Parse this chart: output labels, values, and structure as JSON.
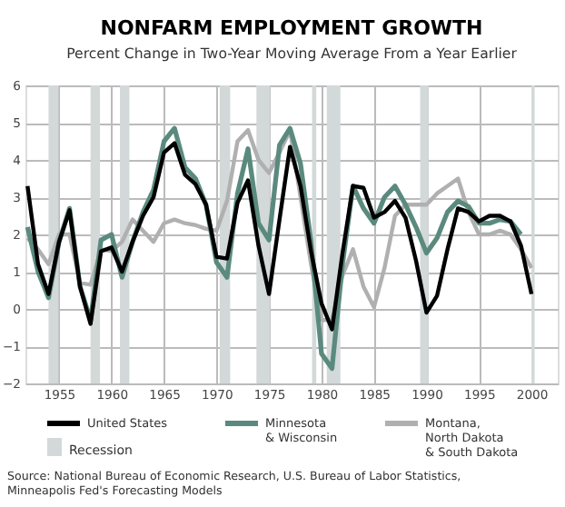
{
  "chart_data": {
    "type": "line",
    "title": "NONFARM EMPLOYMENT GROWTH",
    "subtitle": "Percent Change in Two-Year Moving Average From a Year Earlier",
    "x": [
      1952,
      1953,
      1954,
      1955,
      1956,
      1957,
      1958,
      1959,
      1960,
      1961,
      1962,
      1963,
      1964,
      1965,
      1966,
      1967,
      1968,
      1969,
      1970,
      1971,
      1972,
      1973,
      1974,
      1975,
      1976,
      1977,
      1978,
      1979,
      1980,
      1981,
      1982,
      1983,
      1984,
      1985,
      1986,
      1987,
      1988,
      1989,
      1990,
      1991,
      1992,
      1993,
      1994,
      1995,
      1996,
      1997,
      1998,
      1999,
      2000
    ],
    "series": [
      {
        "name": "United States",
        "color": "#000000",
        "values": [
          3.3,
          1.2,
          0.4,
          1.8,
          2.65,
          0.6,
          -0.4,
          1.55,
          1.65,
          1.0,
          1.8,
          2.5,
          3.0,
          4.2,
          4.45,
          3.6,
          3.35,
          2.8,
          1.4,
          1.35,
          2.85,
          3.45,
          1.7,
          0.4,
          2.4,
          4.35,
          3.3,
          1.55,
          0.15,
          -0.55,
          1.5,
          3.3,
          3.25,
          2.45,
          2.6,
          2.9,
          2.45,
          1.3,
          -0.1,
          0.35,
          1.6,
          2.7,
          2.6,
          2.35,
          2.5,
          2.5,
          2.35,
          1.7,
          0.4
        ]
      },
      {
        "name": "Minnesota & Wisconsin",
        "color": "#5a8a7e",
        "values": [
          2.2,
          1.0,
          0.3,
          1.8,
          2.7,
          0.6,
          -0.3,
          1.85,
          2.0,
          0.85,
          1.8,
          2.6,
          3.2,
          4.5,
          4.85,
          3.8,
          3.5,
          2.8,
          1.25,
          0.85,
          3.1,
          4.3,
          2.3,
          1.85,
          4.4,
          4.85,
          3.9,
          1.8,
          -1.2,
          -1.6,
          1.2,
          3.3,
          2.7,
          2.3,
          3.0,
          3.3,
          2.8,
          2.2,
          1.5,
          1.9,
          2.6,
          2.9,
          2.75,
          2.3,
          2.3,
          2.4,
          2.35,
          2.0,
          null
        ]
      },
      {
        "name": "Montana, North Dakota & South Dakota",
        "color": "#b0b0b0",
        "values": [
          1.9,
          1.6,
          1.2,
          2.0,
          2.0,
          0.7,
          0.65,
          1.6,
          1.55,
          1.8,
          2.4,
          2.1,
          1.8,
          2.3,
          2.4,
          2.3,
          2.25,
          2.15,
          2.1,
          2.9,
          4.5,
          4.8,
          4.0,
          3.65,
          4.2,
          4.8,
          3.0,
          1.2,
          -0.3,
          -0.3,
          0.9,
          1.6,
          0.6,
          0.05,
          1.1,
          2.5,
          2.8,
          2.8,
          2.8,
          3.1,
          3.3,
          3.5,
          2.6,
          2.0,
          2.0,
          2.1,
          2.0,
          1.6,
          1.1
        ]
      }
    ],
    "xlim": [
      1951.8,
      2002.5
    ],
    "xticks": [
      1955,
      1960,
      1965,
      1970,
      1975,
      1980,
      1985,
      1990,
      1995,
      2000
    ],
    "ylim": [
      -2,
      6
    ],
    "yticks": [
      -2,
      -1,
      0,
      1,
      2,
      3,
      4,
      5,
      6
    ],
    "grid": true,
    "legend": "bottom",
    "marker": "none",
    "line_style": "solid",
    "bands": [
      {
        "axis": "x",
        "from": 1954.0,
        "to": 1954.95,
        "label": "Recession",
        "color": "#d3d8d8"
      },
      {
        "axis": "x",
        "from": 1958.0,
        "to": 1958.9,
        "color": "#d3d8d8"
      },
      {
        "axis": "x",
        "from": 1960.8,
        "to": 1961.7,
        "color": "#d3d8d8"
      },
      {
        "axis": "x",
        "from": 1970.3,
        "to": 1971.3,
        "color": "#d3d8d8"
      },
      {
        "axis": "x",
        "from": 1973.8,
        "to": 1975.1,
        "color": "#d3d8d8"
      },
      {
        "axis": "x",
        "from": 1979.1,
        "to": 1979.5,
        "color": "#d3d8d8"
      },
      {
        "axis": "x",
        "from": 1980.5,
        "to": 1981.8,
        "color": "#d3d8d8"
      },
      {
        "axis": "x",
        "from": 1989.4,
        "to": 1990.2,
        "color": "#d3d8d8"
      },
      {
        "axis": "x",
        "from": 2000.0,
        "to": 2000.3,
        "color": "#d3d8d8"
      }
    ],
    "annotations": [
      "Source: National Bureau of Economic Research, U.S. Bureau of Labor Statistics, Minneapolis Fed's Forecasting Models"
    ]
  }
}
